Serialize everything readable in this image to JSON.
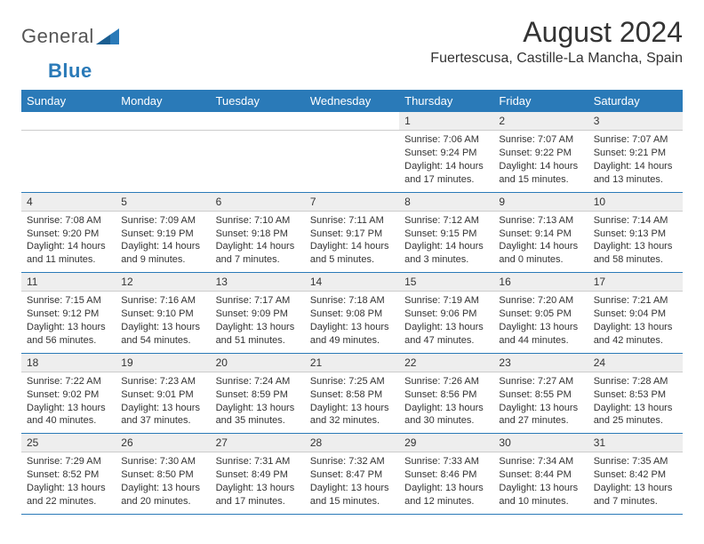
{
  "brand": {
    "name1": "General",
    "name2": "Blue"
  },
  "title": "August 2024",
  "location": "Fuertescusa, Castille-La Mancha, Spain",
  "colors": {
    "header_bg": "#2a7ab8",
    "daynum_bg": "#eeeeee",
    "rule": "#2a7ab8",
    "text": "#333333"
  },
  "day_headers": [
    "Sunday",
    "Monday",
    "Tuesday",
    "Wednesday",
    "Thursday",
    "Friday",
    "Saturday"
  ],
  "weeks": [
    [
      null,
      null,
      null,
      null,
      {
        "n": "1",
        "sr": "Sunrise: 7:06 AM",
        "ss": "Sunset: 9:24 PM",
        "dl": "Daylight: 14 hours and 17 minutes."
      },
      {
        "n": "2",
        "sr": "Sunrise: 7:07 AM",
        "ss": "Sunset: 9:22 PM",
        "dl": "Daylight: 14 hours and 15 minutes."
      },
      {
        "n": "3",
        "sr": "Sunrise: 7:07 AM",
        "ss": "Sunset: 9:21 PM",
        "dl": "Daylight: 14 hours and 13 minutes."
      }
    ],
    [
      {
        "n": "4",
        "sr": "Sunrise: 7:08 AM",
        "ss": "Sunset: 9:20 PM",
        "dl": "Daylight: 14 hours and 11 minutes."
      },
      {
        "n": "5",
        "sr": "Sunrise: 7:09 AM",
        "ss": "Sunset: 9:19 PM",
        "dl": "Daylight: 14 hours and 9 minutes."
      },
      {
        "n": "6",
        "sr": "Sunrise: 7:10 AM",
        "ss": "Sunset: 9:18 PM",
        "dl": "Daylight: 14 hours and 7 minutes."
      },
      {
        "n": "7",
        "sr": "Sunrise: 7:11 AM",
        "ss": "Sunset: 9:17 PM",
        "dl": "Daylight: 14 hours and 5 minutes."
      },
      {
        "n": "8",
        "sr": "Sunrise: 7:12 AM",
        "ss": "Sunset: 9:15 PM",
        "dl": "Daylight: 14 hours and 3 minutes."
      },
      {
        "n": "9",
        "sr": "Sunrise: 7:13 AM",
        "ss": "Sunset: 9:14 PM",
        "dl": "Daylight: 14 hours and 0 minutes."
      },
      {
        "n": "10",
        "sr": "Sunrise: 7:14 AM",
        "ss": "Sunset: 9:13 PM",
        "dl": "Daylight: 13 hours and 58 minutes."
      }
    ],
    [
      {
        "n": "11",
        "sr": "Sunrise: 7:15 AM",
        "ss": "Sunset: 9:12 PM",
        "dl": "Daylight: 13 hours and 56 minutes."
      },
      {
        "n": "12",
        "sr": "Sunrise: 7:16 AM",
        "ss": "Sunset: 9:10 PM",
        "dl": "Daylight: 13 hours and 54 minutes."
      },
      {
        "n": "13",
        "sr": "Sunrise: 7:17 AM",
        "ss": "Sunset: 9:09 PM",
        "dl": "Daylight: 13 hours and 51 minutes."
      },
      {
        "n": "14",
        "sr": "Sunrise: 7:18 AM",
        "ss": "Sunset: 9:08 PM",
        "dl": "Daylight: 13 hours and 49 minutes."
      },
      {
        "n": "15",
        "sr": "Sunrise: 7:19 AM",
        "ss": "Sunset: 9:06 PM",
        "dl": "Daylight: 13 hours and 47 minutes."
      },
      {
        "n": "16",
        "sr": "Sunrise: 7:20 AM",
        "ss": "Sunset: 9:05 PM",
        "dl": "Daylight: 13 hours and 44 minutes."
      },
      {
        "n": "17",
        "sr": "Sunrise: 7:21 AM",
        "ss": "Sunset: 9:04 PM",
        "dl": "Daylight: 13 hours and 42 minutes."
      }
    ],
    [
      {
        "n": "18",
        "sr": "Sunrise: 7:22 AM",
        "ss": "Sunset: 9:02 PM",
        "dl": "Daylight: 13 hours and 40 minutes."
      },
      {
        "n": "19",
        "sr": "Sunrise: 7:23 AM",
        "ss": "Sunset: 9:01 PM",
        "dl": "Daylight: 13 hours and 37 minutes."
      },
      {
        "n": "20",
        "sr": "Sunrise: 7:24 AM",
        "ss": "Sunset: 8:59 PM",
        "dl": "Daylight: 13 hours and 35 minutes."
      },
      {
        "n": "21",
        "sr": "Sunrise: 7:25 AM",
        "ss": "Sunset: 8:58 PM",
        "dl": "Daylight: 13 hours and 32 minutes."
      },
      {
        "n": "22",
        "sr": "Sunrise: 7:26 AM",
        "ss": "Sunset: 8:56 PM",
        "dl": "Daylight: 13 hours and 30 minutes."
      },
      {
        "n": "23",
        "sr": "Sunrise: 7:27 AM",
        "ss": "Sunset: 8:55 PM",
        "dl": "Daylight: 13 hours and 27 minutes."
      },
      {
        "n": "24",
        "sr": "Sunrise: 7:28 AM",
        "ss": "Sunset: 8:53 PM",
        "dl": "Daylight: 13 hours and 25 minutes."
      }
    ],
    [
      {
        "n": "25",
        "sr": "Sunrise: 7:29 AM",
        "ss": "Sunset: 8:52 PM",
        "dl": "Daylight: 13 hours and 22 minutes."
      },
      {
        "n": "26",
        "sr": "Sunrise: 7:30 AM",
        "ss": "Sunset: 8:50 PM",
        "dl": "Daylight: 13 hours and 20 minutes."
      },
      {
        "n": "27",
        "sr": "Sunrise: 7:31 AM",
        "ss": "Sunset: 8:49 PM",
        "dl": "Daylight: 13 hours and 17 minutes."
      },
      {
        "n": "28",
        "sr": "Sunrise: 7:32 AM",
        "ss": "Sunset: 8:47 PM",
        "dl": "Daylight: 13 hours and 15 minutes."
      },
      {
        "n": "29",
        "sr": "Sunrise: 7:33 AM",
        "ss": "Sunset: 8:46 PM",
        "dl": "Daylight: 13 hours and 12 minutes."
      },
      {
        "n": "30",
        "sr": "Sunrise: 7:34 AM",
        "ss": "Sunset: 8:44 PM",
        "dl": "Daylight: 13 hours and 10 minutes."
      },
      {
        "n": "31",
        "sr": "Sunrise: 7:35 AM",
        "ss": "Sunset: 8:42 PM",
        "dl": "Daylight: 13 hours and 7 minutes."
      }
    ]
  ]
}
